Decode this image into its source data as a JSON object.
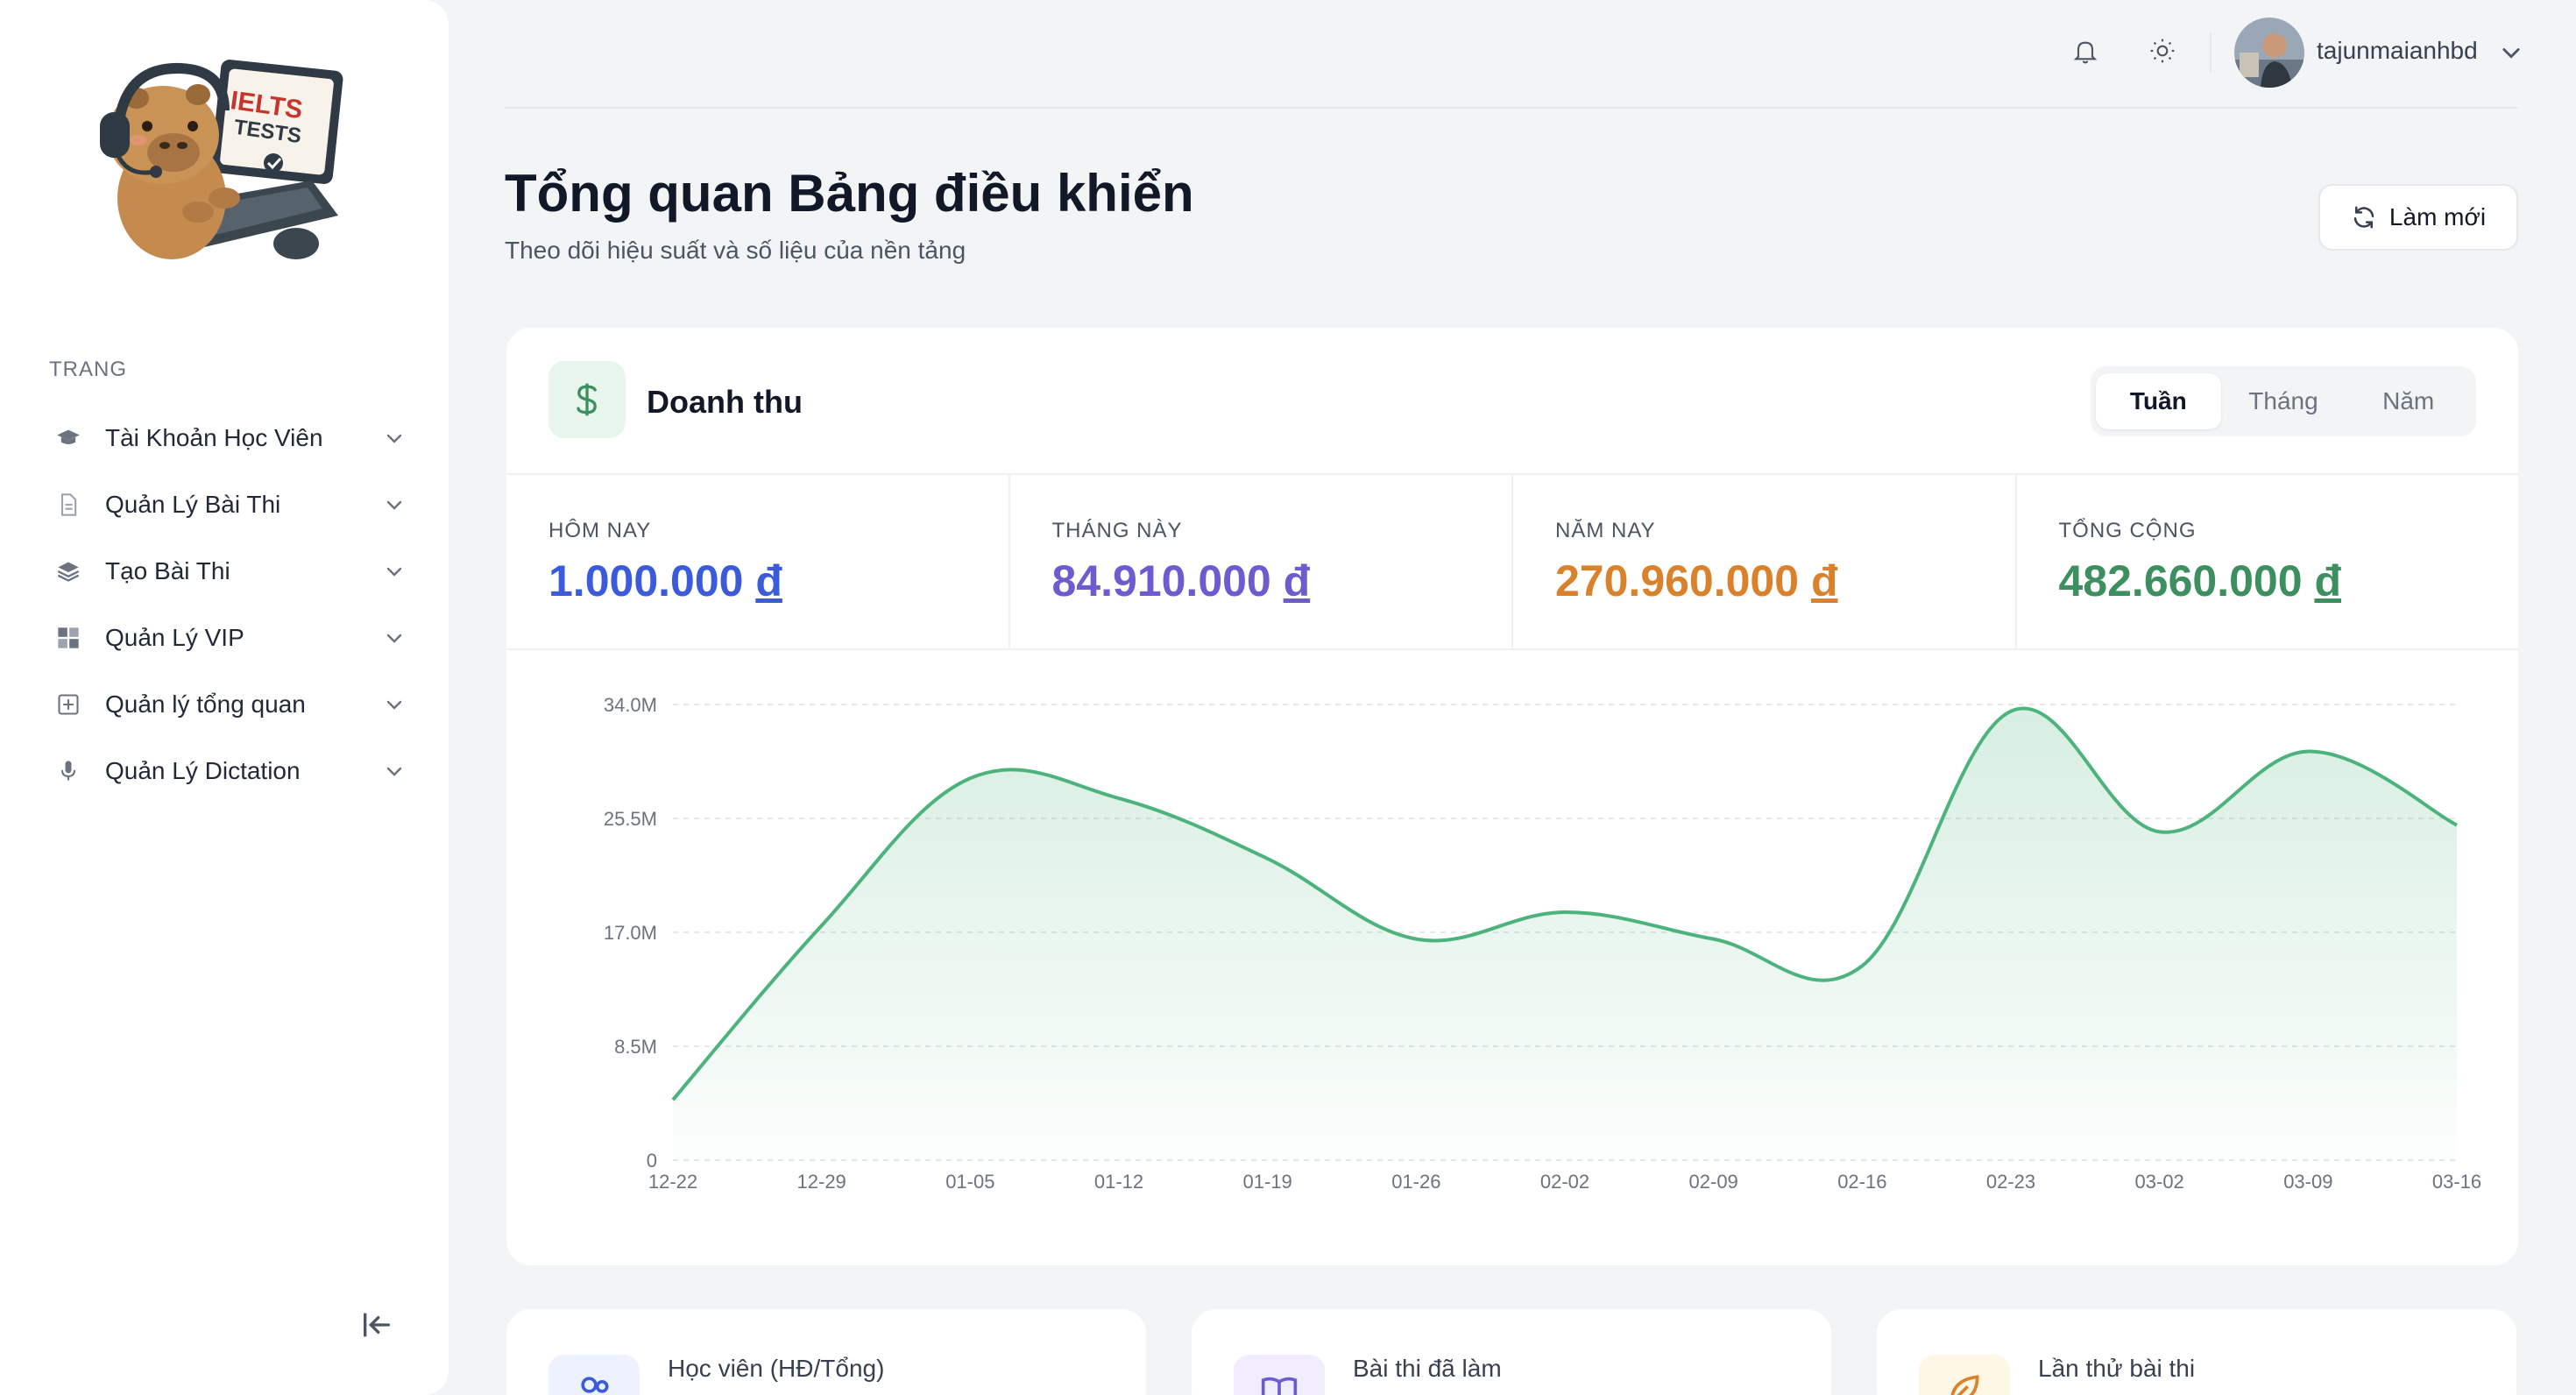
{
  "logo": {
    "line1": "IELTS",
    "line2": "TESTS"
  },
  "sidebar": {
    "section_label": "TRANG",
    "items": [
      {
        "label": "Tài Khoản Học Viên",
        "icon": "graduation-cap-icon"
      },
      {
        "label": "Quản Lý Bài Thi",
        "icon": "document-icon"
      },
      {
        "label": "Tạo Bài Thi",
        "icon": "layers-icon"
      },
      {
        "label": "Quản Lý VIP",
        "icon": "grid-icon"
      },
      {
        "label": "Quản lý tổng quan",
        "icon": "plus-square-icon"
      },
      {
        "label": "Quản Lý Dictation",
        "icon": "microphone-icon"
      }
    ]
  },
  "header": {
    "username": "tajunmaianhbd"
  },
  "page": {
    "title": "Tổng quan Bảng điều khiển",
    "subtitle": "Theo dõi hiệu suất và số liệu của nền tảng",
    "refresh_label": "Làm mới"
  },
  "revenue": {
    "title": "Doanh thu",
    "tabs": [
      "Tuần",
      "Tháng",
      "Năm"
    ],
    "active_tab": "Tuần",
    "currency": "đ",
    "stats": [
      {
        "label": "HÔM NAY",
        "value": "1.000.000",
        "color": "#3b5bdb"
      },
      {
        "label": "THÁNG NÀY",
        "value": "84.910.000",
        "color": "#6d5bd0"
      },
      {
        "label": "NĂM NAY",
        "value": "270.960.000",
        "color": "#d9822b"
      },
      {
        "label": "TỔNG CỘNG",
        "value": "482.660.000",
        "color": "#3d8f5f"
      }
    ]
  },
  "chart_data": {
    "type": "area",
    "categories": [
      "12-22",
      "12-29",
      "01-05",
      "01-12",
      "01-19",
      "01-26",
      "02-02",
      "02-09",
      "02-16",
      "02-23",
      "03-02",
      "03-09",
      "03-16"
    ],
    "values": [
      4.5,
      17.5,
      28.5,
      27.0,
      22.5,
      16.5,
      18.5,
      16.5,
      14.5,
      33.5,
      24.5,
      30.5,
      25.0
    ],
    "y_ticks": [
      "0",
      "8.5M",
      "17.0M",
      "25.5M",
      "34.0M"
    ],
    "ylim": [
      0,
      34
    ],
    "line_color": "#4cb37c",
    "grid": true
  },
  "bottom_cards": [
    {
      "title": "Học viên (HĐ/Tổng)",
      "icon": "users-icon",
      "color": "#eef2ff"
    },
    {
      "title": "Bài thi đã làm",
      "icon": "book-icon",
      "color": "#f1edff"
    },
    {
      "title": "Lần thử bài thi",
      "icon": "leaf-icon",
      "color": "#fff7e6"
    }
  ]
}
